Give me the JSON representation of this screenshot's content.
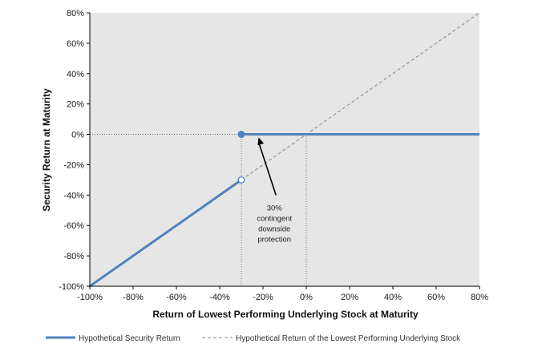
{
  "chart_data": {
    "type": "line",
    "xlabel": "Return of Lowest Performing Underlying Stock at Maturity",
    "ylabel": "Security Return at Maturity",
    "xlim": [
      -100,
      80
    ],
    "ylim": [
      -100,
      80
    ],
    "x_ticks": [
      "-100%",
      "-80%",
      "-60%",
      "-40%",
      "-20%",
      "0%",
      "20%",
      "40%",
      "60%",
      "80%"
    ],
    "y_ticks": [
      "80%",
      "60%",
      "40%",
      "20%",
      "0%",
      "-20%",
      "-40%",
      "-60%",
      "-80%",
      "-100%"
    ],
    "grid": false,
    "plot_background": "#e6e6e6",
    "legend_position": "bottom",
    "series": [
      {
        "name": "Hypothetical Security Return",
        "color": "#4f81bd",
        "style": "solid",
        "segments": [
          [
            [
              -100,
              -100
            ],
            [
              -30,
              -30
            ]
          ],
          [
            [
              -30,
              0
            ],
            [
              80,
              0
            ]
          ]
        ],
        "markers": [
          {
            "x": -30,
            "y": 0,
            "filled": true
          },
          {
            "x": -30,
            "y": -30,
            "filled": false
          }
        ]
      },
      {
        "name": "Hypothetical Return of the Lowest Performing Underlying Stock",
        "color": "#888888",
        "style": "dashed",
        "points": [
          [
            -30,
            -30
          ],
          [
            80,
            80
          ]
        ]
      }
    ],
    "reference_lines": [
      {
        "orientation": "horizontal",
        "y": 0,
        "x_from": -100,
        "x_to": -30
      },
      {
        "orientation": "vertical",
        "x": -30,
        "y_from": -100,
        "y_to": 0
      },
      {
        "orientation": "vertical",
        "x": 0,
        "y_from": -100,
        "y_to": 0
      }
    ],
    "annotation": {
      "lines": [
        "30%",
        "contingent",
        "downside",
        "protection"
      ],
      "arrow_from": [
        -14,
        -40
      ],
      "arrow_to": [
        -22,
        -2
      ]
    }
  }
}
